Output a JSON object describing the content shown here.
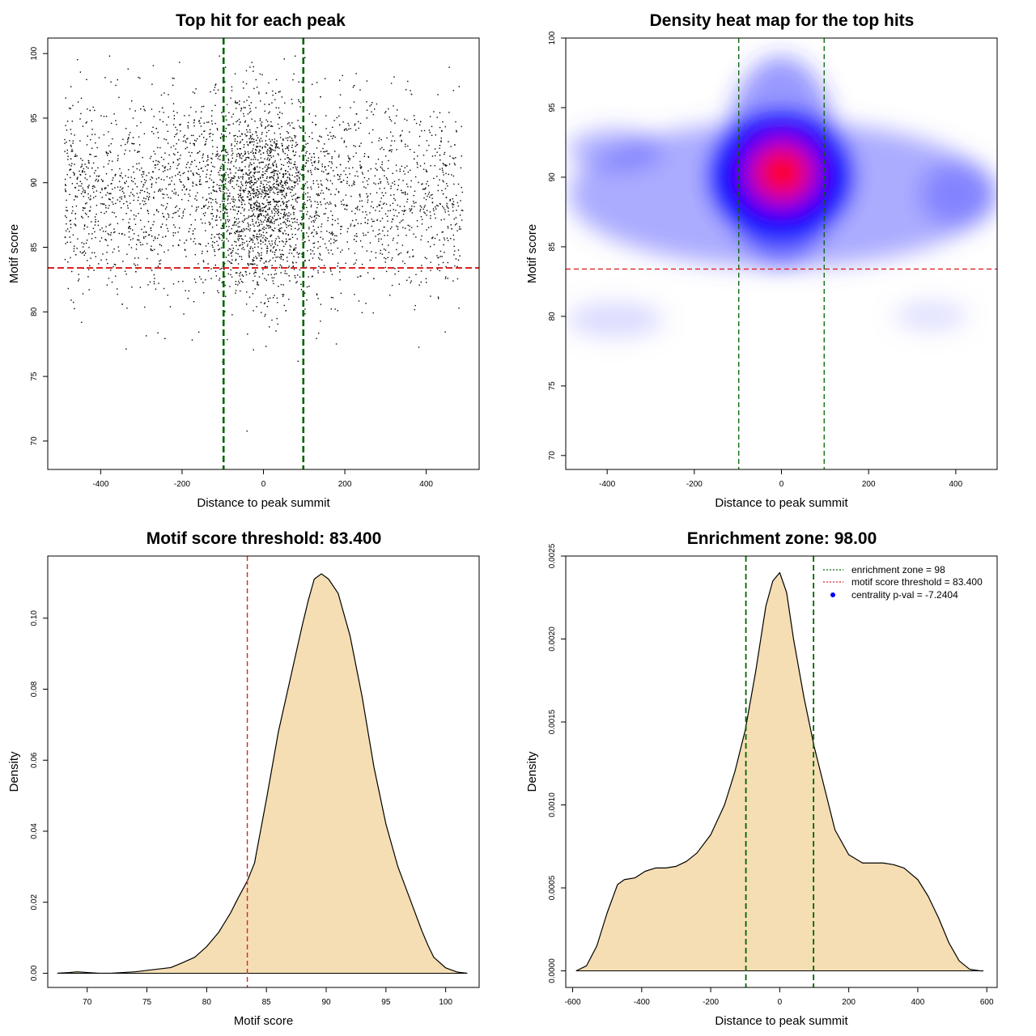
{
  "colors": {
    "threshold_line": "#dd2222",
    "zone_line": "#006400",
    "scatter_point": "#000000",
    "density_fill": "#f5deb3",
    "heat_low": "#ffffff",
    "heat_mid": "#0000ff",
    "heat_high": "#ff0000",
    "legend_point": "#0000ff"
  },
  "chart_data": [
    {
      "id": "scatter",
      "type": "scatter",
      "title": "Top hit for each peak",
      "xlabel": "Distance to peak summit",
      "ylabel": "Motif score",
      "xlim": [
        -530,
        530
      ],
      "ylim": [
        67.8,
        101.2
      ],
      "xticks": [
        -400,
        -200,
        0,
        200,
        400
      ],
      "xtick_labels": [
        "-400",
        "-200",
        "0",
        "200",
        "400"
      ],
      "yticks": [
        70,
        75,
        80,
        85,
        90,
        95,
        100
      ],
      "ytick_labels": [
        "70",
        "75",
        "80",
        "85",
        "90",
        "95",
        "100"
      ],
      "n_points": 3900,
      "x_range": [
        -490,
        490
      ],
      "central_fraction": 0.35,
      "central_sd": 70,
      "score_mean": 89,
      "score_sd": 3.8,
      "score_range": [
        69,
        99.8
      ],
      "hlines": [
        83.4
      ],
      "vlines": [
        -98,
        98
      ]
    },
    {
      "id": "heatmap",
      "type": "heatmap",
      "title": "Density heat map for the top hits",
      "xlabel": "Distance to peak summit",
      "ylabel": "Motif score",
      "xlim": [
        -495,
        495
      ],
      "ylim": [
        69,
        100
      ],
      "xticks": [
        -400,
        -200,
        0,
        200,
        400
      ],
      "xtick_labels": [
        "-400",
        "-200",
        "0",
        "200",
        "400"
      ],
      "yticks": [
        70,
        75,
        80,
        85,
        90,
        95,
        100
      ],
      "ytick_labels": [
        "70",
        "75",
        "80",
        "85",
        "90",
        "95",
        "100"
      ],
      "peak": {
        "x": 0,
        "y": 90.3
      },
      "hlines": [
        83.4
      ],
      "vlines": [
        -98,
        98
      ]
    },
    {
      "id": "score_density",
      "type": "area",
      "title": "Motif score threshold: 83.400",
      "xlabel": "Motif score",
      "ylabel": "Density",
      "xlim": [
        66.7,
        102.8
      ],
      "ylim": [
        -0.004,
        0.1175
      ],
      "xticks": [
        70,
        75,
        80,
        85,
        90,
        95,
        100
      ],
      "xtick_labels": [
        "70",
        "75",
        "80",
        "85",
        "90",
        "95",
        "100"
      ],
      "yticks": [
        0,
        0.02,
        0.04,
        0.06,
        0.08,
        0.1
      ],
      "ytick_labels": [
        "0.00",
        "0.02",
        "0.04",
        "0.06",
        "0.08",
        "0.10"
      ],
      "x": [
        67.5,
        68.5,
        69.2,
        70,
        71,
        72,
        73,
        74,
        75,
        76,
        77,
        78,
        79,
        80,
        81,
        82,
        82.6,
        83.4,
        84,
        85,
        86,
        87,
        88,
        88.5,
        89,
        89.6,
        90.2,
        91,
        92,
        93,
        94,
        95,
        96,
        97,
        98,
        98.5,
        99,
        100,
        101,
        101.8
      ],
      "y": [
        0,
        0.0002,
        0.0004,
        0.0002,
        0,
        0,
        0.0002,
        0.0004,
        0.0008,
        0.0012,
        0.0016,
        0.003,
        0.0045,
        0.0075,
        0.0115,
        0.017,
        0.021,
        0.026,
        0.031,
        0.049,
        0.068,
        0.083,
        0.098,
        0.105,
        0.111,
        0.1125,
        0.111,
        0.107,
        0.095,
        0.078,
        0.058,
        0.042,
        0.03,
        0.021,
        0.012,
        0.008,
        0.0045,
        0.0015,
        0.0003,
        0
      ],
      "vlines": [
        83.4
      ]
    },
    {
      "id": "distance_density",
      "type": "area",
      "title": "Enrichment zone: 98.00",
      "xlabel": "Distance to peak summit",
      "ylabel": "Density",
      "xlim": [
        -620,
        630
      ],
      "ylim": [
        -0.0001,
        0.0025
      ],
      "xticks": [
        -600,
        -400,
        -200,
        0,
        200,
        400,
        600
      ],
      "xtick_labels": [
        "-600",
        "-400",
        "-200",
        "0",
        "200",
        "400",
        "600"
      ],
      "yticks": [
        0,
        0.0005,
        0.001,
        0.0015,
        0.002,
        0.0025
      ],
      "ytick_labels": [
        "0.0000",
        "0.0005",
        "0.0010",
        "0.0015",
        "0.0020",
        "0.0025"
      ],
      "x": [
        -590,
        -560,
        -530,
        -500,
        -470,
        -450,
        -420,
        -390,
        -360,
        -330,
        -300,
        -270,
        -240,
        -200,
        -160,
        -130,
        -100,
        -70,
        -40,
        -20,
        0,
        20,
        40,
        70,
        100,
        130,
        160,
        200,
        240,
        270,
        300,
        330,
        360,
        400,
        430,
        460,
        490,
        520,
        550,
        580,
        590
      ],
      "y": [
        0,
        3e-05,
        0.00015,
        0.00035,
        0.00052,
        0.00055,
        0.00056,
        0.0006,
        0.00062,
        0.00062,
        0.00063,
        0.00066,
        0.00071,
        0.00082,
        0.001,
        0.0012,
        0.00145,
        0.0018,
        0.0022,
        0.00235,
        0.0024,
        0.00228,
        0.002,
        0.00165,
        0.00135,
        0.0011,
        0.00085,
        0.0007,
        0.00065,
        0.00065,
        0.00065,
        0.00064,
        0.00062,
        0.00055,
        0.00045,
        0.00032,
        0.00017,
        6e-05,
        1e-05,
        0,
        0
      ],
      "vlines": [
        -98,
        98
      ],
      "legend": {
        "position": "top-right",
        "entries": [
          {
            "label": "enrichment zone = 98",
            "style": "dotted-line",
            "color": "#006400"
          },
          {
            "label": "motif score threshold = 83.400",
            "style": "dotted-line",
            "color": "#dd2222"
          },
          {
            "label": "centrality p-val = -7.2404",
            "style": "point",
            "color": "#0000ff"
          }
        ]
      }
    }
  ]
}
